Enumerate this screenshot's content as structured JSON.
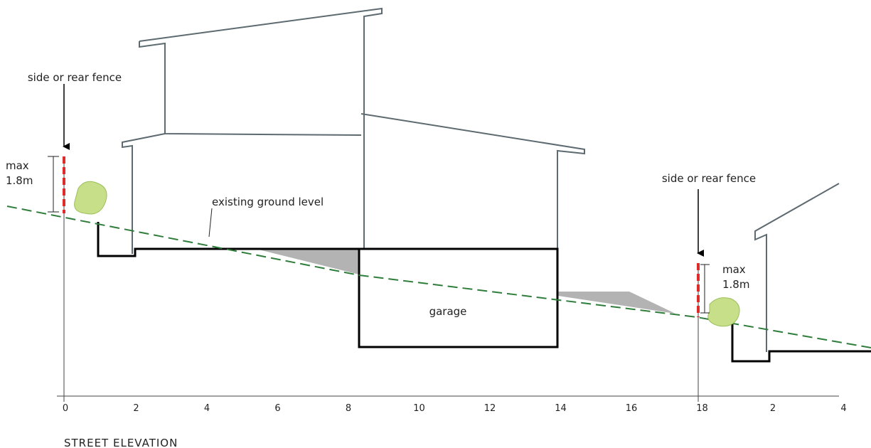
{
  "annotations": {
    "left_fence": "side or rear fence",
    "right_fence": "side or rear fence",
    "left_max": "max",
    "left_height": "1.8m",
    "right_max": "max",
    "right_height": "1.8m",
    "ground": "existing ground level",
    "garage": "garage"
  },
  "axis": {
    "labels": [
      0,
      2,
      4,
      6,
      8,
      10,
      12,
      14,
      16,
      18,
      2,
      4
    ]
  },
  "caption": "STREET ELEVATION"
}
